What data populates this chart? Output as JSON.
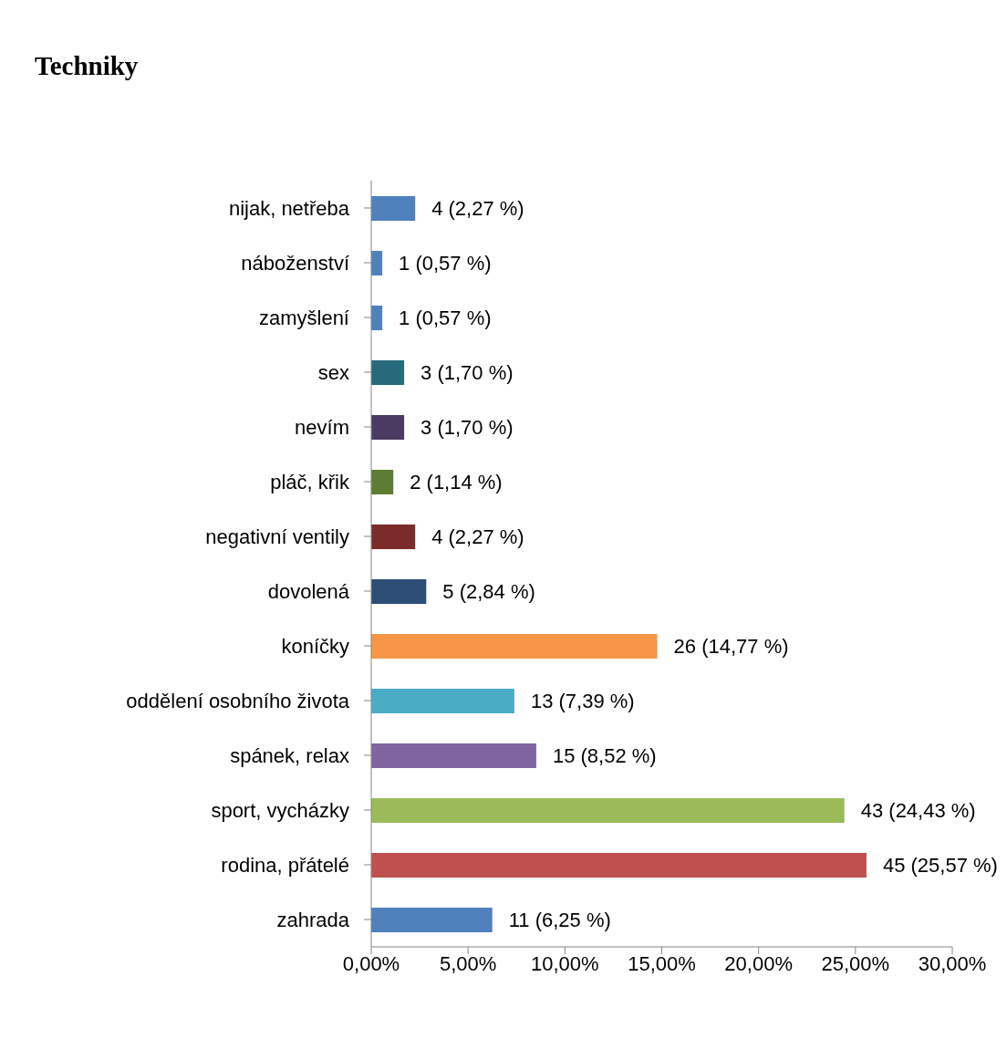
{
  "chart_data": {
    "type": "bar",
    "orientation": "horizontal",
    "title": "Techniky",
    "categories": [
      "nijak, netřeba",
      "náboženství",
      "zamyšlení",
      "sex",
      "nevím",
      "pláč, křik",
      "negativní ventily",
      "dovolená",
      "koníčky",
      "oddělení osobního života",
      "spánek, relax",
      "sport, vycházky",
      "rodina, přátelé",
      "zahrada"
    ],
    "values": [
      2.27,
      0.57,
      0.57,
      1.7,
      1.7,
      1.14,
      2.27,
      2.84,
      14.77,
      7.39,
      8.52,
      24.43,
      25.57,
      6.25
    ],
    "colors": [
      "#4f81bd",
      "#4f81bd",
      "#4f81bd",
      "#276a7c",
      "#4b3b62",
      "#5e7d32",
      "#7b2c2a",
      "#2c4d75",
      "#f79646",
      "#4bacc6",
      "#8064a2",
      "#9bbb59",
      "#c0504d",
      "#4f81bd"
    ],
    "value_labels": [
      "4 (2,27 %)",
      "1 (0,57 %)",
      "1 (0,57 %)",
      "3 (1,70 %)",
      "3 (1,70 %)",
      "2 (1,14 %)",
      "4 (2,27 %)",
      "5 (2,84 %)",
      "26 (14,77 %)",
      "13 (7,39 %)",
      "15 (8,52 %)",
      "43 (24,43 %)",
      "45 (25,57 %)",
      "11 (6,25 %)"
    ],
    "xlim": [
      0,
      30
    ],
    "xticks": [
      {
        "value": 0,
        "label": "0,00%"
      },
      {
        "value": 5,
        "label": "5,00%"
      },
      {
        "value": 10,
        "label": "10,00%"
      },
      {
        "value": 15,
        "label": "15,00%"
      },
      {
        "value": 20,
        "label": "20,00%"
      },
      {
        "value": 25,
        "label": "25,00%"
      },
      {
        "value": 30,
        "label": "30,00%"
      }
    ],
    "grid": false,
    "legend": false
  }
}
